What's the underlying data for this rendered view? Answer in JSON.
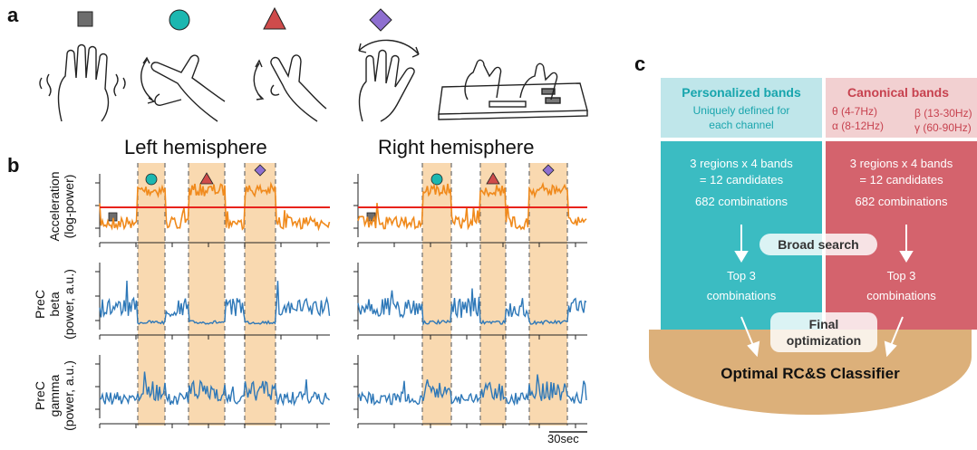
{
  "panels": {
    "a": "a",
    "b": "b",
    "c": "c"
  },
  "panel_b": {
    "left_title": "Left hemisphere",
    "right_title": "Right hemisphere",
    "row_labels": [
      {
        "line1": "Acceleration",
        "line2": "(log-power)"
      },
      {
        "line1": "PreC",
        "line2": "beta",
        "line3": "(power, a.u.)"
      },
      {
        "line1": "PreC",
        "line2": "gamma",
        "line3": "(power, a.u.)"
      }
    ],
    "scale_bar": "30sec",
    "colors": {
      "accel": "#f08a1c",
      "neural": "#2e78b8",
      "threshold": "#e8231c",
      "shade": "#f9d9b0"
    }
  },
  "markers": {
    "square": "#6d6d6d",
    "circle": "#1cb7b0",
    "triangle": "#cf4b4b",
    "diamond": "#8e6fd0"
  },
  "panel_c": {
    "personalized": {
      "title": "Personalized bands",
      "subtitle_line1": "Uniquely defined for",
      "subtitle_line2": "each channel",
      "line1": "3 regions x 4 bands",
      "line2": "= 12 candidates",
      "line3": "682 combinations",
      "top_line1": "Top 3",
      "top_line2": "combinations",
      "color_header": "#bfe6ea",
      "color_body": "#3bbcc2",
      "color_title": "#17a5ad"
    },
    "canonical": {
      "title": "Canonical bands",
      "bands": [
        "θ (4-7Hz)",
        "β (13-30Hz)",
        "α (8-12Hz)",
        "γ (60-90Hz)"
      ],
      "line1": "3 regions x 4 bands",
      "line2": "= 12 candidates",
      "line3": "682 combinations",
      "top_line1": "Top 3",
      "top_line2": "combinations",
      "color_header": "#f2d0d1",
      "color_body": "#d4636d",
      "color_title": "#c7424f"
    },
    "broad_search": "Broad search",
    "final_line1": "Final",
    "final_line2": "optimization",
    "optimal": "Optimal RC&S Classifier",
    "color_bowl": "#dcb07a"
  }
}
